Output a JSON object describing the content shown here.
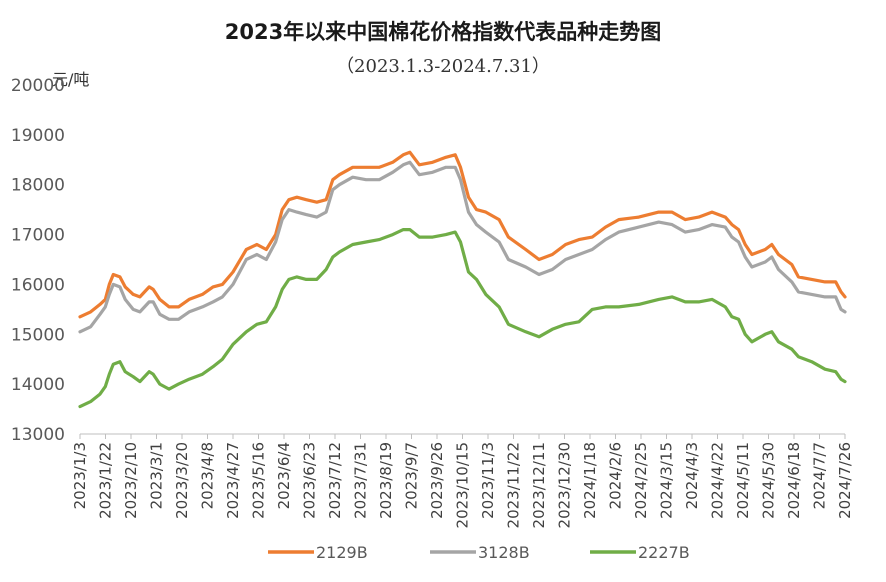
{
  "chart_data": {
    "type": "line",
    "title": "2023年以来中国棉花价格指数代表品种走势图",
    "subtitle": "（2023.1.3-2024.7.31）",
    "ylabel": "元/吨",
    "ylim": [
      13000,
      20000
    ],
    "yticks": [
      13000,
      14000,
      15000,
      16000,
      17000,
      18000,
      19000,
      20000
    ],
    "x_tick_labels": [
      "2023/1/3",
      "2023/1/22",
      "2023/2/10",
      "2023/3/1",
      "2023/3/20",
      "2023/4/8",
      "2023/4/27",
      "2023/5/16",
      "2023/6/4",
      "2023/6/23",
      "2023/7/12",
      "2023/7/31",
      "2023/8/19",
      "2023/9/7",
      "2023/9/26",
      "2023/10/15",
      "2023/11/3",
      "2023/11/22",
      "2023/12/11",
      "2023/12/30",
      "2024/1/18",
      "2024/2/6",
      "2024/2/25",
      "2024/3/15",
      "2024/4/3",
      "2024/4/22",
      "2024/5/11",
      "2024/5/30",
      "2024/6/18",
      "2024/7/7",
      "2024/7/26"
    ],
    "x_range_days": [
      0,
      575
    ],
    "series": [
      {
        "name": "2129B",
        "color": "#ED7D31",
        "points": [
          [
            0,
            15350
          ],
          [
            8,
            15450
          ],
          [
            15,
            15600
          ],
          [
            19,
            15700
          ],
          [
            22,
            16000
          ],
          [
            25,
            16200
          ],
          [
            30,
            16150
          ],
          [
            34,
            15950
          ],
          [
            40,
            15800
          ],
          [
            45,
            15750
          ],
          [
            52,
            15950
          ],
          [
            55,
            15900
          ],
          [
            60,
            15700
          ],
          [
            67,
            15550
          ],
          [
            74,
            15550
          ],
          [
            82,
            15700
          ],
          [
            92,
            15800
          ],
          [
            100,
            15950
          ],
          [
            107,
            16000
          ],
          [
            115,
            16250
          ],
          [
            125,
            16700
          ],
          [
            133,
            16800
          ],
          [
            140,
            16700
          ],
          [
            147,
            17000
          ],
          [
            152,
            17500
          ],
          [
            157,
            17700
          ],
          [
            163,
            17750
          ],
          [
            170,
            17700
          ],
          [
            178,
            17650
          ],
          [
            185,
            17700
          ],
          [
            190,
            18100
          ],
          [
            195,
            18200
          ],
          [
            205,
            18350
          ],
          [
            215,
            18350
          ],
          [
            225,
            18350
          ],
          [
            235,
            18450
          ],
          [
            243,
            18600
          ],
          [
            248,
            18650
          ],
          [
            255,
            18400
          ],
          [
            265,
            18450
          ],
          [
            275,
            18550
          ],
          [
            282,
            18600
          ],
          [
            286,
            18350
          ],
          [
            292,
            17750
          ],
          [
            298,
            17500
          ],
          [
            305,
            17450
          ],
          [
            315,
            17300
          ],
          [
            322,
            16950
          ],
          [
            335,
            16700
          ],
          [
            345,
            16500
          ],
          [
            355,
            16600
          ],
          [
            365,
            16800
          ],
          [
            375,
            16900
          ],
          [
            385,
            16950
          ],
          [
            395,
            17150
          ],
          [
            405,
            17300
          ],
          [
            420,
            17350
          ],
          [
            435,
            17450
          ],
          [
            445,
            17450
          ],
          [
            455,
            17300
          ],
          [
            465,
            17350
          ],
          [
            475,
            17450
          ],
          [
            485,
            17350
          ],
          [
            490,
            17200
          ],
          [
            495,
            17100
          ],
          [
            500,
            16800
          ],
          [
            505,
            16600
          ],
          [
            515,
            16700
          ],
          [
            520,
            16800
          ],
          [
            525,
            16600
          ],
          [
            535,
            16400
          ],
          [
            540,
            16150
          ],
          [
            550,
            16100
          ],
          [
            560,
            16050
          ],
          [
            568,
            16050
          ],
          [
            572,
            15850
          ],
          [
            575,
            15750
          ]
        ]
      },
      {
        "name": "3128B",
        "color": "#A5A5A5",
        "points": [
          [
            0,
            15050
          ],
          [
            8,
            15150
          ],
          [
            15,
            15400
          ],
          [
            19,
            15550
          ],
          [
            22,
            15800
          ],
          [
            25,
            16000
          ],
          [
            30,
            15950
          ],
          [
            34,
            15700
          ],
          [
            40,
            15500
          ],
          [
            45,
            15450
          ],
          [
            52,
            15650
          ],
          [
            55,
            15650
          ],
          [
            60,
            15400
          ],
          [
            67,
            15300
          ],
          [
            74,
            15300
          ],
          [
            82,
            15450
          ],
          [
            92,
            15550
          ],
          [
            100,
            15650
          ],
          [
            107,
            15750
          ],
          [
            115,
            16000
          ],
          [
            125,
            16500
          ],
          [
            133,
            16600
          ],
          [
            140,
            16500
          ],
          [
            147,
            16850
          ],
          [
            152,
            17300
          ],
          [
            157,
            17500
          ],
          [
            163,
            17450
          ],
          [
            170,
            17400
          ],
          [
            178,
            17350
          ],
          [
            185,
            17450
          ],
          [
            190,
            17900
          ],
          [
            195,
            18000
          ],
          [
            205,
            18150
          ],
          [
            215,
            18100
          ],
          [
            225,
            18100
          ],
          [
            235,
            18250
          ],
          [
            243,
            18400
          ],
          [
            248,
            18450
          ],
          [
            255,
            18200
          ],
          [
            265,
            18250
          ],
          [
            275,
            18350
          ],
          [
            282,
            18350
          ],
          [
            286,
            18100
          ],
          [
            292,
            17450
          ],
          [
            298,
            17200
          ],
          [
            305,
            17050
          ],
          [
            315,
            16850
          ],
          [
            322,
            16500
          ],
          [
            335,
            16350
          ],
          [
            345,
            16200
          ],
          [
            355,
            16300
          ],
          [
            365,
            16500
          ],
          [
            375,
            16600
          ],
          [
            385,
            16700
          ],
          [
            395,
            16900
          ],
          [
            405,
            17050
          ],
          [
            420,
            17150
          ],
          [
            435,
            17250
          ],
          [
            445,
            17200
          ],
          [
            455,
            17050
          ],
          [
            465,
            17100
          ],
          [
            475,
            17200
          ],
          [
            485,
            17150
          ],
          [
            490,
            16950
          ],
          [
            495,
            16850
          ],
          [
            500,
            16550
          ],
          [
            505,
            16350
          ],
          [
            515,
            16450
          ],
          [
            520,
            16550
          ],
          [
            525,
            16300
          ],
          [
            535,
            16050
          ],
          [
            540,
            15850
          ],
          [
            550,
            15800
          ],
          [
            560,
            15750
          ],
          [
            568,
            15750
          ],
          [
            572,
            15500
          ],
          [
            575,
            15450
          ]
        ]
      },
      {
        "name": "2227B",
        "color": "#70AD47",
        "points": [
          [
            0,
            13550
          ],
          [
            8,
            13650
          ],
          [
            15,
            13800
          ],
          [
            19,
            13950
          ],
          [
            22,
            14200
          ],
          [
            25,
            14400
          ],
          [
            30,
            14450
          ],
          [
            34,
            14250
          ],
          [
            40,
            14150
          ],
          [
            45,
            14050
          ],
          [
            52,
            14250
          ],
          [
            55,
            14200
          ],
          [
            60,
            14000
          ],
          [
            67,
            13900
          ],
          [
            74,
            14000
          ],
          [
            82,
            14100
          ],
          [
            92,
            14200
          ],
          [
            100,
            14350
          ],
          [
            107,
            14500
          ],
          [
            115,
            14800
          ],
          [
            125,
            15050
          ],
          [
            133,
            15200
          ],
          [
            140,
            15250
          ],
          [
            147,
            15550
          ],
          [
            152,
            15900
          ],
          [
            157,
            16100
          ],
          [
            163,
            16150
          ],
          [
            170,
            16100
          ],
          [
            178,
            16100
          ],
          [
            185,
            16300
          ],
          [
            190,
            16550
          ],
          [
            195,
            16650
          ],
          [
            205,
            16800
          ],
          [
            215,
            16850
          ],
          [
            225,
            16900
          ],
          [
            235,
            17000
          ],
          [
            243,
            17100
          ],
          [
            248,
            17100
          ],
          [
            255,
            16950
          ],
          [
            265,
            16950
          ],
          [
            275,
            17000
          ],
          [
            282,
            17050
          ],
          [
            286,
            16850
          ],
          [
            292,
            16250
          ],
          [
            298,
            16100
          ],
          [
            305,
            15800
          ],
          [
            315,
            15550
          ],
          [
            322,
            15200
          ],
          [
            335,
            15050
          ],
          [
            345,
            14950
          ],
          [
            355,
            15100
          ],
          [
            365,
            15200
          ],
          [
            375,
            15250
          ],
          [
            385,
            15500
          ],
          [
            395,
            15550
          ],
          [
            405,
            15550
          ],
          [
            420,
            15600
          ],
          [
            435,
            15700
          ],
          [
            445,
            15750
          ],
          [
            455,
            15650
          ],
          [
            465,
            15650
          ],
          [
            475,
            15700
          ],
          [
            485,
            15550
          ],
          [
            490,
            15350
          ],
          [
            495,
            15300
          ],
          [
            500,
            15000
          ],
          [
            505,
            14850
          ],
          [
            515,
            15000
          ],
          [
            520,
            15050
          ],
          [
            525,
            14850
          ],
          [
            535,
            14700
          ],
          [
            540,
            14550
          ],
          [
            550,
            14450
          ],
          [
            560,
            14300
          ],
          [
            568,
            14250
          ],
          [
            572,
            14100
          ],
          [
            575,
            14050
          ]
        ]
      }
    ]
  }
}
